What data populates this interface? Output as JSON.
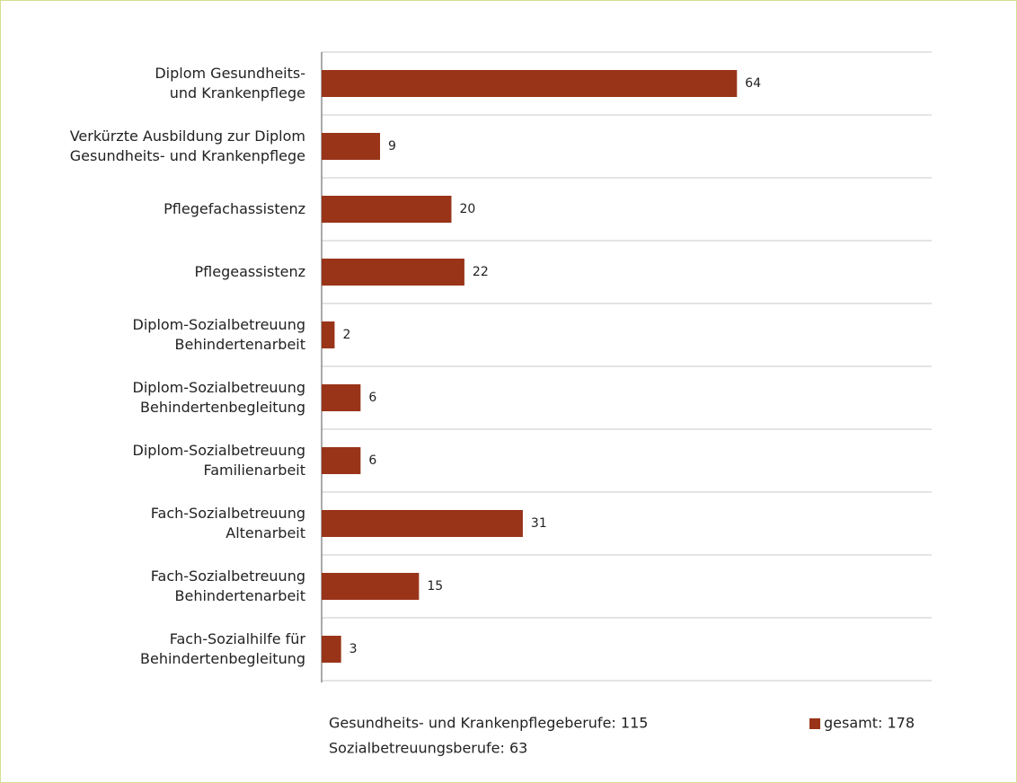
{
  "chart_data": {
    "type": "hbar",
    "categories": [
      "Diplom Gesundheits-\nund Krankenpflege",
      "Verkürzte Ausbildung zur Diplom\nGesundheits- und Krankenpflege",
      "Pflegefachassistenz",
      "Pflegeassistenz",
      "Diplom-Sozialbetreuung\nBehindertenarbeit",
      "Diplom-Sozialbetreuung\nBehindertenbegleitung",
      "Diplom-Sozialbetreuung\nFamilienarbeit",
      "Fach-Sozialbetreuung\nAltenarbeit",
      "Fach-Sozialbetreuung\nBehindertenarbeit",
      "Fach-Sozialhilfe für\nBehindertenbegleitung"
    ],
    "series": [
      {
        "name": "gesamt: 178",
        "color": "#993419",
        "values": [
          64,
          9,
          20,
          22,
          2,
          6,
          6,
          31,
          15,
          3
        ]
      }
    ],
    "xlim": [
      0,
      94
    ],
    "grid": true,
    "annotations": [
      "Gesundheits- und Krankenpflegeberufe: 115",
      "Sozialbetreuungsberufe: 63"
    ],
    "legend": "bottom-right"
  }
}
